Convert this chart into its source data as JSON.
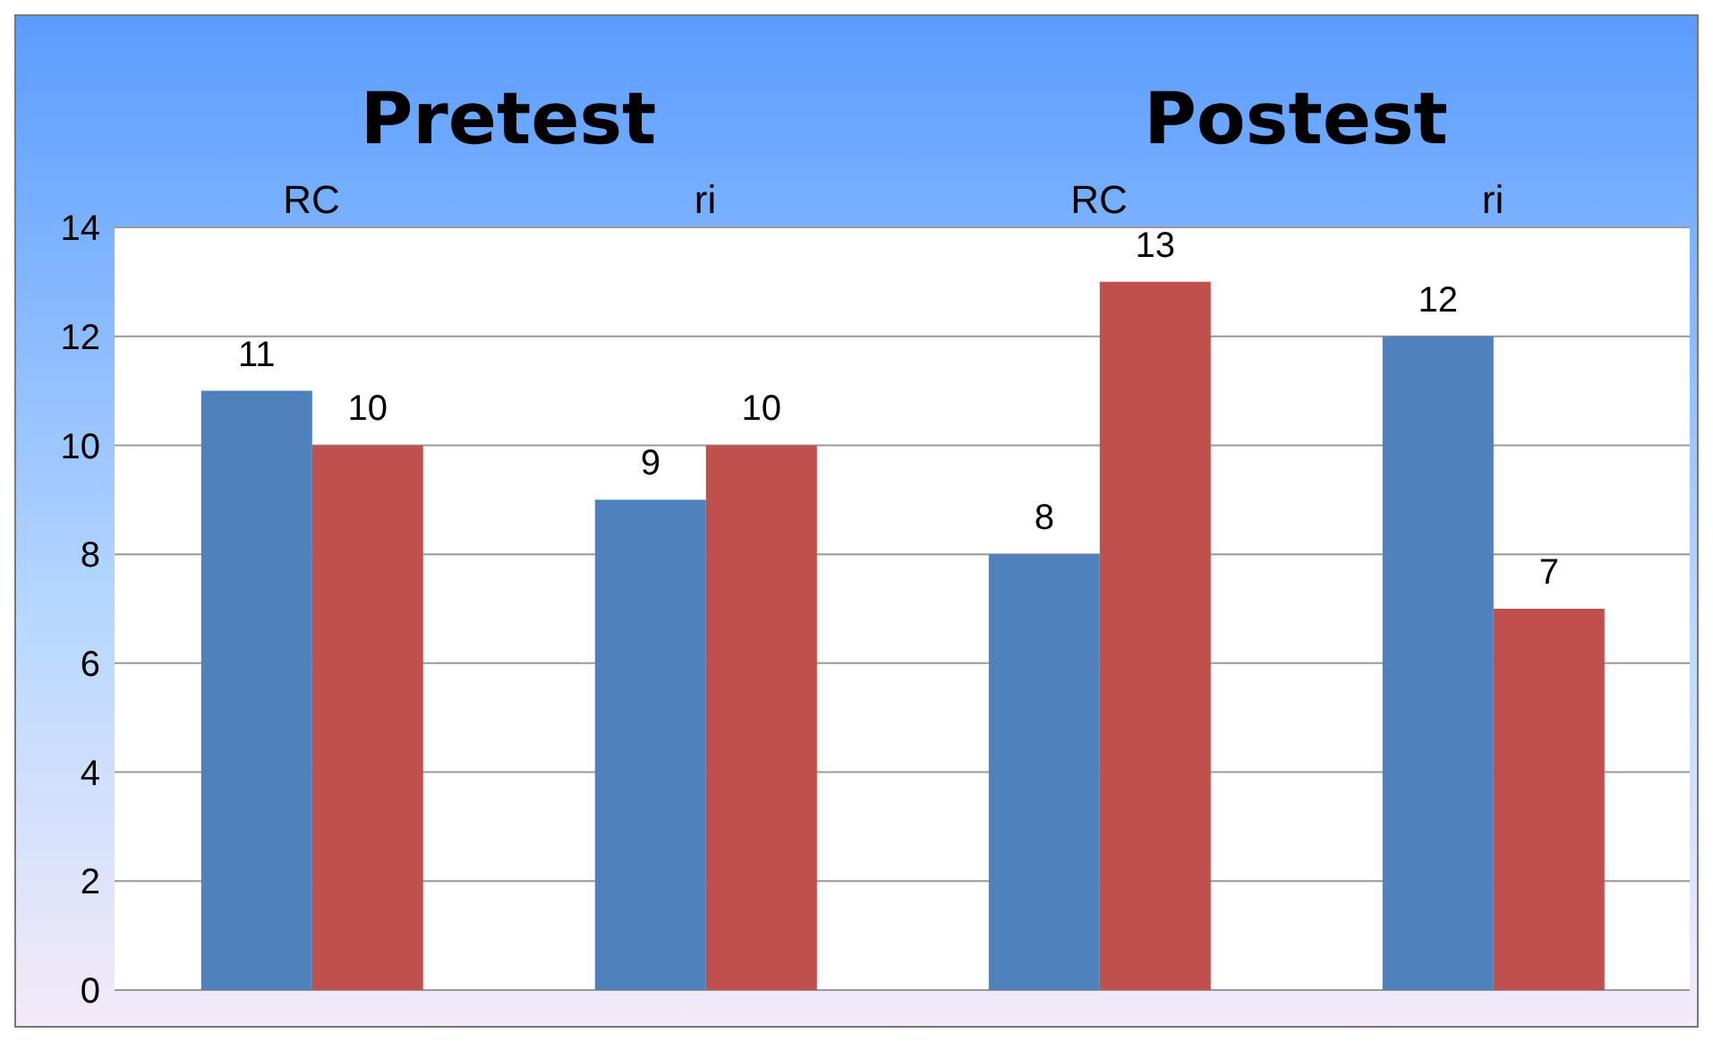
{
  "chart_data": {
    "type": "bar",
    "categories": [
      "RC",
      "ri",
      "RC",
      "ri"
    ],
    "series": [
      {
        "color": "#4f81bd",
        "values": [
          11,
          9,
          8,
          12
        ]
      },
      {
        "color": "#c0504d",
        "values": [
          10,
          10,
          13,
          7
        ]
      }
    ],
    "ylim": [
      0,
      14
    ],
    "yticks": [
      0,
      2,
      4,
      6,
      8,
      10,
      12,
      14
    ],
    "grid": "y",
    "data_labels": true,
    "annotations": [
      "Pretest",
      "Postest"
    ]
  }
}
